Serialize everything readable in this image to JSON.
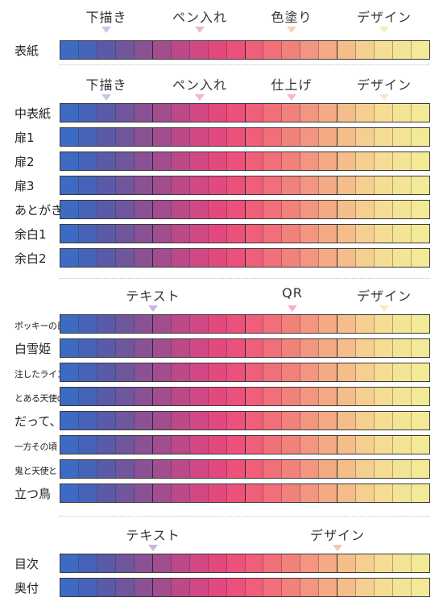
{
  "colors": [
    "#3d6bc4",
    "#4663b8",
    "#5a5aa8",
    "#70569c",
    "#8a5194",
    "#a24d8e",
    "#bd4a88",
    "#d24884",
    "#e2497f",
    "#ec517b",
    "#ef5f7a",
    "#f06f78",
    "#f1827b",
    "#f29680",
    "#f3aa85",
    "#f4bd8a",
    "#f5cf8f",
    "#f5dd93",
    "#f3e595",
    "#f2ea96"
  ],
  "section1": {
    "stages": [
      "下描き",
      "ペン入れ",
      "色塗り",
      "デザイン"
    ],
    "rows": [
      {
        "label": "表紙"
      }
    ]
  },
  "section2": {
    "stages": [
      "下描き",
      "ペン入れ",
      "仕上げ",
      "デザイン"
    ],
    "rows": [
      {
        "label": "中表紙"
      },
      {
        "label": "扉1"
      },
      {
        "label": "扉2"
      },
      {
        "label": "扉3"
      },
      {
        "label": "あとがき"
      },
      {
        "label": "余白1"
      },
      {
        "label": "余白2"
      }
    ]
  },
  "section3": {
    "stages": [
      "テキスト",
      "QR",
      "デザイン"
    ],
    "rows": [
      {
        "label": "ポッキーの日",
        "small": true
      },
      {
        "label": "白雪姫"
      },
      {
        "label": "注したライン",
        "small": true
      },
      {
        "label": "とある天使の",
        "small": true
      },
      {
        "label": "だって、"
      },
      {
        "label": "一方その頃",
        "small": true
      },
      {
        "label": "鬼と天使と",
        "small": true
      },
      {
        "label": "立つ鳥"
      }
    ]
  },
  "section4": {
    "stages": [
      "テキスト",
      "デザイン"
    ],
    "rows": [
      {
        "label": "目次"
      },
      {
        "label": "奥付"
      }
    ]
  },
  "marker_colors": {
    "blue": "#c5c8ec",
    "pink": "#efb8cf",
    "peach": "#f6d3bb",
    "yellow": "#f5ecbf",
    "purple": "#c9b5dd",
    "red": "#f2b2c4",
    "orange": "#f5c7ad"
  }
}
